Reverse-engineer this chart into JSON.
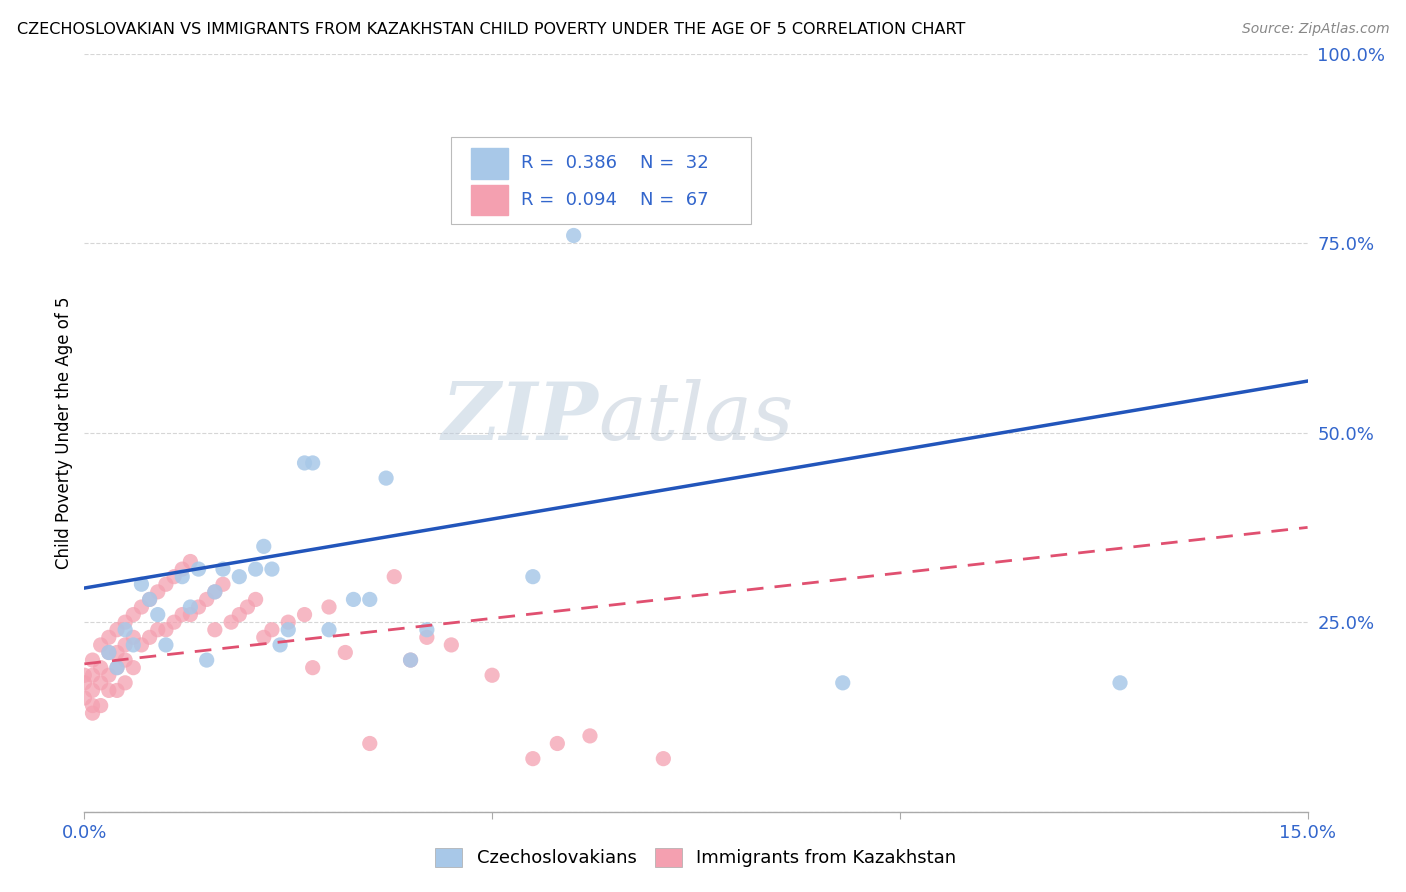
{
  "title": "CZECHOSLOVAKIAN VS IMMIGRANTS FROM KAZAKHSTAN CHILD POVERTY UNDER THE AGE OF 5 CORRELATION CHART",
  "source": "Source: ZipAtlas.com",
  "ylabel": "Child Poverty Under the Age of 5",
  "xlim": [
    0,
    0.15
  ],
  "ylim": [
    0,
    1.0
  ],
  "xtick_positions": [
    0.0,
    0.05,
    0.1,
    0.15
  ],
  "xticklabels": [
    "0.0%",
    "",
    "",
    "15.0%"
  ],
  "ytick_positions": [
    0.0,
    0.25,
    0.5,
    0.75,
    1.0
  ],
  "yticklabels": [
    "",
    "25.0%",
    "50.0%",
    "75.0%",
    "100.0%"
  ],
  "legend_labels": [
    "Czechoslovakians",
    "Immigrants from Kazakhstan"
  ],
  "color_czech": "#A8C8E8",
  "color_kazakh": "#F4A0B0",
  "line_czech": "#2255BB",
  "line_kazakh": "#E05070",
  "background_color": "#FFFFFF",
  "grid_color": "#CCCCCC",
  "watermark_zip": "ZIP",
  "watermark_atlas": "atlas",
  "czech_x": [
    0.003,
    0.004,
    0.005,
    0.006,
    0.007,
    0.008,
    0.009,
    0.01,
    0.012,
    0.013,
    0.014,
    0.015,
    0.016,
    0.017,
    0.019,
    0.021,
    0.022,
    0.023,
    0.024,
    0.025,
    0.027,
    0.028,
    0.03,
    0.033,
    0.035,
    0.037,
    0.04,
    0.042,
    0.055,
    0.06,
    0.093,
    0.127
  ],
  "czech_y": [
    0.21,
    0.19,
    0.24,
    0.22,
    0.3,
    0.28,
    0.26,
    0.22,
    0.31,
    0.27,
    0.32,
    0.2,
    0.29,
    0.32,
    0.31,
    0.32,
    0.35,
    0.32,
    0.22,
    0.24,
    0.46,
    0.46,
    0.24,
    0.28,
    0.28,
    0.44,
    0.2,
    0.24,
    0.31,
    0.76,
    0.17,
    0.17
  ],
  "kazakh_x": [
    0.0,
    0.0,
    0.0,
    0.001,
    0.001,
    0.001,
    0.001,
    0.001,
    0.002,
    0.002,
    0.002,
    0.002,
    0.003,
    0.003,
    0.003,
    0.003,
    0.004,
    0.004,
    0.004,
    0.004,
    0.005,
    0.005,
    0.005,
    0.005,
    0.006,
    0.006,
    0.006,
    0.007,
    0.007,
    0.008,
    0.008,
    0.009,
    0.009,
    0.01,
    0.01,
    0.011,
    0.011,
    0.012,
    0.012,
    0.013,
    0.013,
    0.014,
    0.015,
    0.016,
    0.016,
    0.017,
    0.018,
    0.019,
    0.02,
    0.021,
    0.022,
    0.023,
    0.025,
    0.027,
    0.028,
    0.03,
    0.032,
    0.035,
    0.038,
    0.04,
    0.042,
    0.045,
    0.05,
    0.055,
    0.058,
    0.062,
    0.071
  ],
  "kazakh_y": [
    0.17,
    0.18,
    0.15,
    0.2,
    0.18,
    0.16,
    0.14,
    0.13,
    0.22,
    0.19,
    0.17,
    0.14,
    0.23,
    0.21,
    0.18,
    0.16,
    0.24,
    0.21,
    0.19,
    0.16,
    0.25,
    0.22,
    0.2,
    0.17,
    0.26,
    0.23,
    0.19,
    0.27,
    0.22,
    0.28,
    0.23,
    0.29,
    0.24,
    0.3,
    0.24,
    0.31,
    0.25,
    0.32,
    0.26,
    0.33,
    0.26,
    0.27,
    0.28,
    0.29,
    0.24,
    0.3,
    0.25,
    0.26,
    0.27,
    0.28,
    0.23,
    0.24,
    0.25,
    0.26,
    0.19,
    0.27,
    0.21,
    0.09,
    0.31,
    0.2,
    0.23,
    0.22,
    0.18,
    0.07,
    0.09,
    0.1,
    0.07
  ],
  "czech_line_x0": 0.0,
  "czech_line_y0": 0.295,
  "czech_line_x1": 0.15,
  "czech_line_y1": 0.568,
  "kazakh_line_x0": 0.0,
  "kazakh_line_y0": 0.195,
  "kazakh_line_x1": 0.15,
  "kazakh_line_y1": 0.375
}
